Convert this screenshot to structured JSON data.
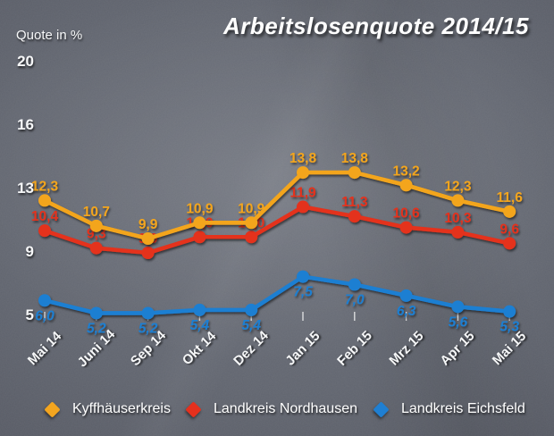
{
  "colors": {
    "background_center": "#6C707A",
    "background_edge": "#3D4048",
    "grid": "#D7D9DC",
    "axis": "#F4F5F6",
    "text": "#FFFFFF",
    "kyffhaeuserkreis": "#F3A51F",
    "nordhausen": "#E4301D",
    "eichsfeld": "#1F7FD2"
  },
  "chart_data": {
    "type": "line",
    "title": "Arbeitslosenquote 2014/15",
    "ylabel": "Quote in %",
    "xlabel": "",
    "grid": true,
    "legend_position": "bottom",
    "categories": [
      "Mai 14",
      "Juni 14",
      "Sep 14",
      "Okt 14",
      "Dez 14",
      "Jan 15",
      "Feb 15",
      "Mrz 15",
      "Apr 15",
      "Mai 15"
    ],
    "y_ticks": [
      20,
      16,
      13,
      9,
      5
    ],
    "y_tick_labels": [
      "20",
      "16",
      "13",
      "9",
      "5"
    ],
    "ylim": [
      5,
      20
    ],
    "series": [
      {
        "name": "Kyffhäuserkreis",
        "color": "#F3A51F",
        "values": [
          12.3,
          10.7,
          9.9,
          10.9,
          10.9,
          13.8,
          13.8,
          13.2,
          12.3,
          11.6
        ],
        "labels": [
          "12,3",
          "10,7",
          "9,9",
          "10,9",
          "10,9",
          "13,8",
          "13,8",
          "13,2",
          "12,3",
          "11,6"
        ],
        "label_position": "above",
        "label_style": "normal"
      },
      {
        "name": "Landkreis Nordhausen",
        "color": "#E4301D",
        "values": [
          10.4,
          9.3,
          9.0,
          10.0,
          10.0,
          11.9,
          11.3,
          10.6,
          10.3,
          9.6
        ],
        "labels": [
          "10,4",
          "9,3",
          "9,0",
          "10,0",
          "10,0",
          "11,9",
          "11,3",
          "10,6",
          "10,3",
          "9,6"
        ],
        "label_position": "above",
        "label_style": "normal"
      },
      {
        "name": "Landkreis Eichsfeld",
        "color": "#1F7FD2",
        "values": [
          6.0,
          5.2,
          5.2,
          5.4,
          5.4,
          7.5,
          7.0,
          6.3,
          5.6,
          5.3
        ],
        "labels": [
          "6,0",
          "5,2",
          "5,2",
          "5,4",
          "5,4",
          "7,5",
          "7,0",
          "6,3",
          "5,6",
          "5,3"
        ],
        "label_position": "below",
        "label_style": "italic"
      }
    ],
    "legend": [
      {
        "label": "Kyffhäuserkreis",
        "color": "#F3A51F"
      },
      {
        "label": "Landkreis Nordhausen",
        "color": "#E4301D"
      },
      {
        "label": "Landkreis Eichsfeld",
        "color": "#1F7FD2"
      }
    ]
  }
}
